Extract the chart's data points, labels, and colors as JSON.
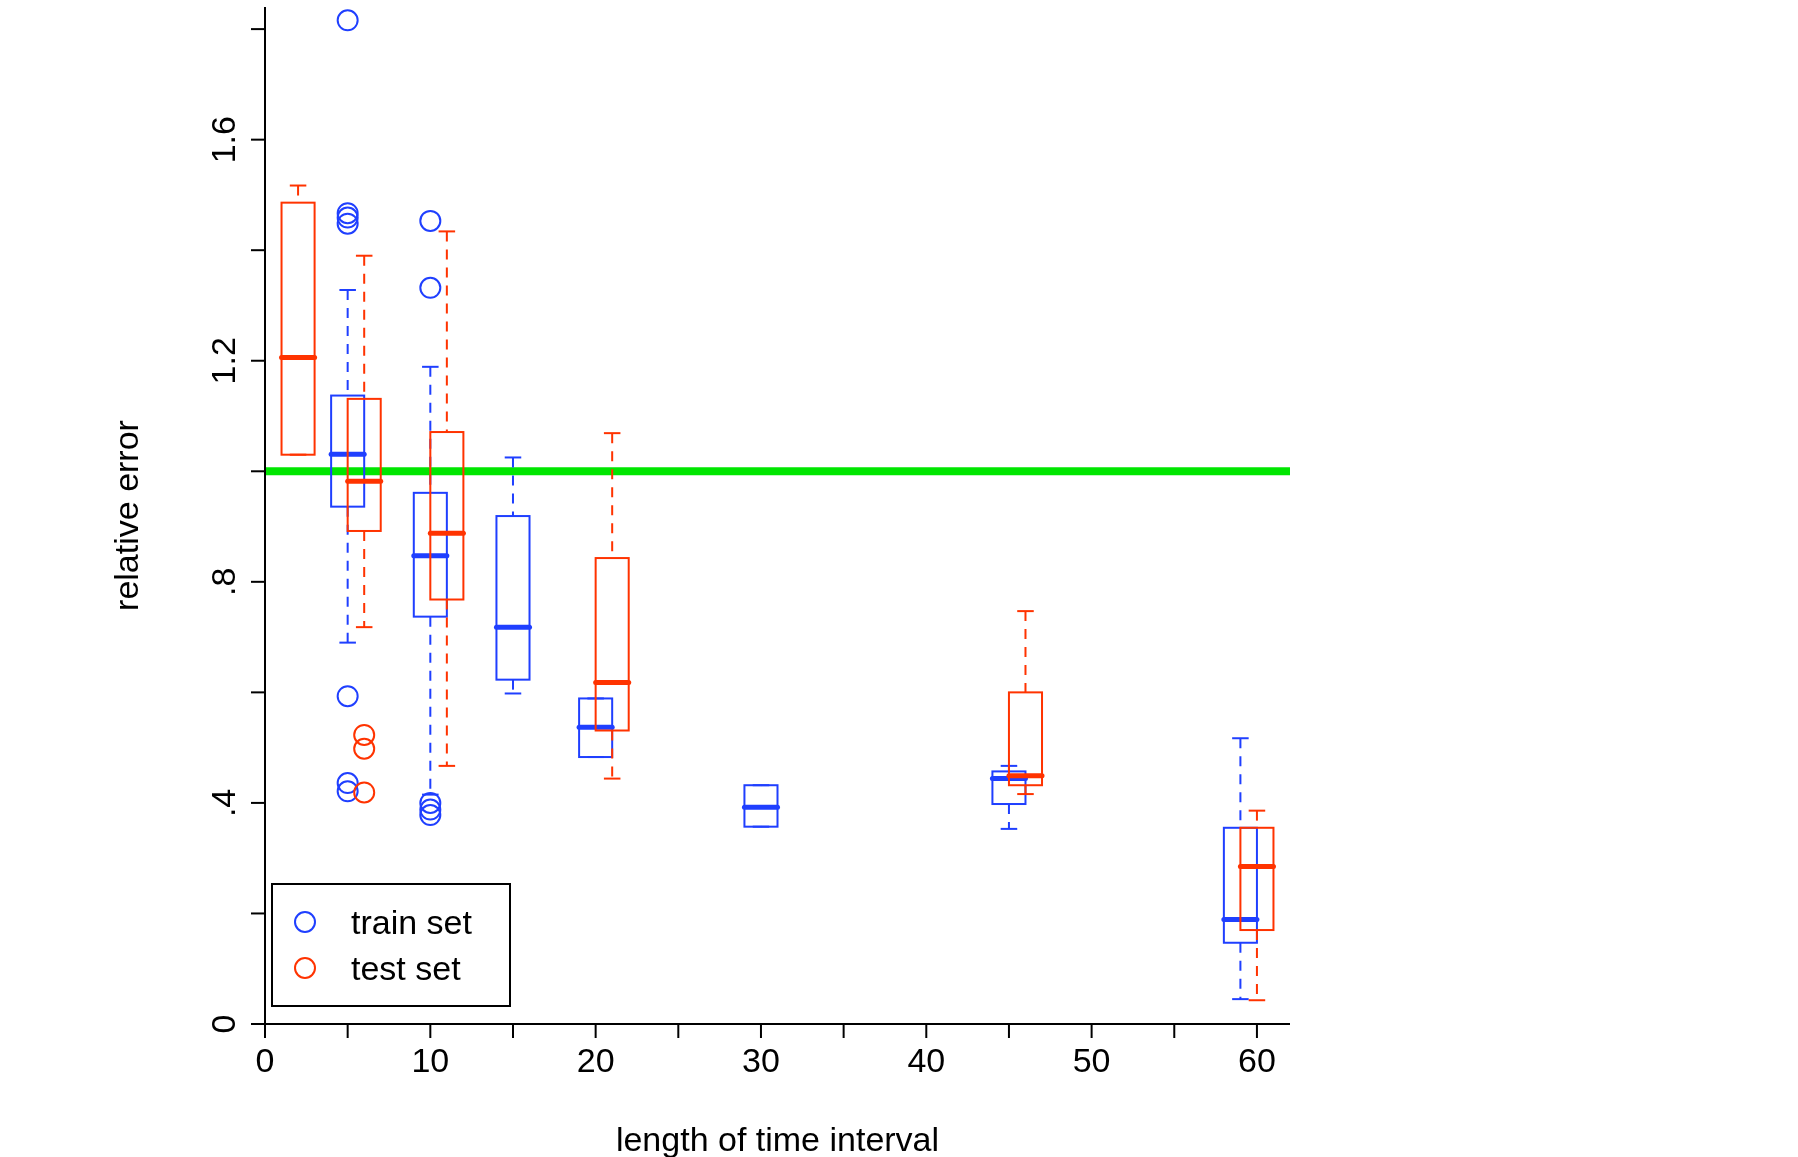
{
  "chart_data": {
    "type": "box",
    "xlabel": "length of time interval",
    "ylabel": "relative error",
    "xlim": [
      0,
      62
    ],
    "xticks": [
      0,
      {
        "value": 5,
        "label": null
      },
      10,
      {
        "value": 15,
        "label": null
      },
      20,
      {
        "value": 25,
        "label": null
      },
      30,
      {
        "value": 35,
        "label": null
      },
      40,
      {
        "value": 45,
        "label": null
      },
      50,
      {
        "value": 55,
        "label": null
      },
      60
    ],
    "ylim": [
      0,
      1.84
    ],
    "yticks": [
      0,
      {
        "value": 0.2,
        "label": null
      },
      {
        "value": 0.4,
        "label": ".4"
      },
      {
        "value": 0.6,
        "label": null
      },
      {
        "value": 0.8,
        "label": ".8"
      },
      {
        "value": 1.0,
        "label": null
      },
      1.2,
      {
        "value": 1.4,
        "label": null
      },
      1.6,
      {
        "value": 1.8,
        "label": null
      }
    ],
    "legend": "bottom left",
    "marker": "circle",
    "ref_lines": [
      {
        "axis": "y",
        "value": 1.0,
        "color": "#00e600"
      }
    ],
    "series": [
      {
        "name": "train set",
        "color": "#1f3fff",
        "x": [
          5,
          10,
          15,
          20,
          30,
          45,
          59
        ],
        "boxes": [
          {
            "low": 0.69,
            "q1": 0.936,
            "median": 1.031,
            "q3": 1.137,
            "high": 1.328,
            "outliers": [
              1.816,
              1.467,
              1.459,
              1.448,
              0.593,
              0.436,
              0.421
            ]
          },
          {
            "low": 0.415,
            "q1": 0.737,
            "median": 0.847,
            "q3": 0.961,
            "high": 1.189,
            "outliers": [
              1.453,
              1.332,
              0.4,
              0.388,
              0.378
            ]
          },
          {
            "low": 0.598,
            "q1": 0.623,
            "median": 0.718,
            "q3": 0.919,
            "high": 1.025
          },
          {
            "low": 0.483,
            "q1": 0.483,
            "median": 0.537,
            "q3": 0.589,
            "high": 0.589
          },
          {
            "low": 0.357,
            "q1": 0.357,
            "median": 0.392,
            "q3": 0.432,
            "high": 0.432
          },
          {
            "low": 0.353,
            "q1": 0.398,
            "median": 0.444,
            "q3": 0.457,
            "high": 0.467
          },
          {
            "low": 0.045,
            "q1": 0.147,
            "median": 0.189,
            "q3": 0.355,
            "high": 0.517
          }
        ]
      },
      {
        "name": "test set",
        "color": "#ff3300",
        "x": [
          2,
          6,
          11,
          21,
          46,
          60
        ],
        "boxes": [
          {
            "low": 1.03,
            "q1": 1.03,
            "median": 1.206,
            "q3": 1.486,
            "high": 1.517
          },
          {
            "low": 0.718,
            "q1": 0.892,
            "median": 0.982,
            "q3": 1.131,
            "high": 1.39,
            "outliers": [
              0.523,
              0.498,
              0.419
            ]
          },
          {
            "low": 0.467,
            "q1": 0.768,
            "median": 0.888,
            "q3": 1.071,
            "high": 1.434
          },
          {
            "low": 0.444,
            "q1": 0.531,
            "median": 0.618,
            "q3": 0.843,
            "high": 1.069
          },
          {
            "low": 0.416,
            "q1": 0.432,
            "median": 0.449,
            "q3": 0.6,
            "high": 0.747
          },
          {
            "low": 0.043,
            "q1": 0.17,
            "median": 0.285,
            "q3": 0.355,
            "high": 0.386
          }
        ]
      }
    ]
  }
}
